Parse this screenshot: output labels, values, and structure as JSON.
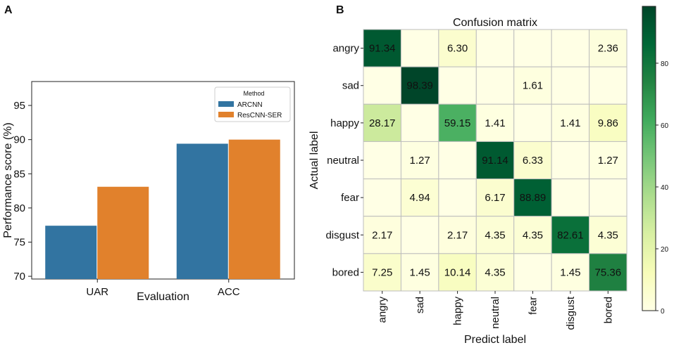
{
  "panels": {
    "a": {
      "letter": "A"
    },
    "b": {
      "letter": "B"
    }
  },
  "chart_data": [
    {
      "type": "bar",
      "title": "",
      "xlabel": "Evaluation",
      "ylabel": "Performance score (%)",
      "categories": [
        "UAR",
        "ACC"
      ],
      "series": [
        {
          "name": "ARCNN",
          "values": [
            77.4,
            89.4
          ],
          "color": "#3274a1"
        },
        {
          "name": "ResCNN-SER",
          "values": [
            83.1,
            90.0
          ],
          "color": "#e1812c"
        }
      ],
      "ylim": [
        69.6,
        98.5
      ],
      "yticks": [
        70,
        75,
        80,
        85,
        90,
        95
      ],
      "legend": {
        "title": "Method",
        "position": "top-right"
      }
    },
    {
      "type": "heatmap",
      "title": "Confusion matrix",
      "xlabel": "Predict label",
      "ylabel": "Actual label",
      "labels": [
        "angry",
        "sad",
        "happy",
        "neutral",
        "fear",
        "disgust",
        "bored"
      ],
      "values": [
        [
          91.34,
          null,
          6.3,
          null,
          null,
          null,
          2.36
        ],
        [
          null,
          98.39,
          null,
          null,
          1.61,
          null,
          null
        ],
        [
          28.17,
          null,
          59.15,
          1.41,
          null,
          1.41,
          9.86
        ],
        [
          null,
          1.27,
          null,
          91.14,
          6.33,
          null,
          1.27
        ],
        [
          null,
          4.94,
          null,
          6.17,
          88.89,
          null,
          null
        ],
        [
          2.17,
          null,
          2.17,
          4.35,
          4.35,
          82.61,
          4.35
        ],
        [
          7.25,
          1.45,
          10.14,
          4.35,
          null,
          1.45,
          75.36
        ]
      ],
      "cells_text": [
        [
          "91.34",
          "",
          "6.30",
          "",
          "",
          "",
          "2.36"
        ],
        [
          "",
          "98.39",
          "",
          "",
          "1.61",
          "",
          ""
        ],
        [
          "28.17",
          "",
          "59.15",
          "1.41",
          "",
          "1.41",
          "9.86"
        ],
        [
          "",
          "1.27",
          "",
          "91.14",
          "6.33",
          "",
          "1.27"
        ],
        [
          "",
          "4.94",
          "",
          "6.17",
          "88.89",
          "",
          ""
        ],
        [
          "2.17",
          "",
          "2.17",
          "4.35",
          "4.35",
          "82.61",
          "4.35"
        ],
        [
          "7.25",
          "1.45",
          "10.14",
          "4.35",
          "",
          "1.45",
          "75.36"
        ]
      ],
      "colormap": "YlGn",
      "colorbar": {
        "min": 0,
        "max": 98.39,
        "ticks": [
          0,
          20,
          40,
          60,
          80
        ]
      }
    }
  ]
}
